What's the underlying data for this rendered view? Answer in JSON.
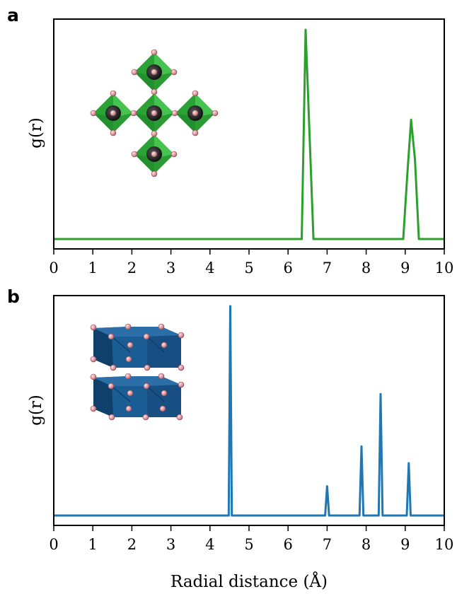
{
  "colors": {
    "panel_a": "#2ca02c",
    "panel_b": "#1f77b4",
    "octahedron_green": "#2fb43a",
    "octahedron_blue": "#1a5d95",
    "atom_pink": "#e6a0a8",
    "atom_dark": "#333333"
  },
  "icons": {
    "panel_a_inset": "corner-sharing-octahedra-cross",
    "panel_b_inset": "edge-sharing-octahedra-layers"
  },
  "chart_data": [
    {
      "type": "line",
      "panel_label": "a",
      "ylabel": "g(r)",
      "xlabel": "",
      "xlim": [
        0,
        10
      ],
      "x_ticks": [
        "0",
        "1",
        "2",
        "3",
        "4",
        "5",
        "6",
        "7",
        "8",
        "9",
        "10"
      ],
      "y_ticks_shown": false,
      "grid": false,
      "series": [
        {
          "color": "#2ca02c",
          "x": [
            0,
            6.35,
            6.45,
            6.65,
            8.95,
            9.05,
            9.15,
            9.25,
            9.35,
            10
          ],
          "y": [
            0,
            0,
            1.0,
            0,
            0,
            0.3,
            0.57,
            0.38,
            0,
            0
          ]
        }
      ]
    },
    {
      "type": "line",
      "panel_label": "b",
      "ylabel": "g(r)",
      "xlabel": "Radial distance (Å)",
      "xlim": [
        0,
        10
      ],
      "x_ticks": [
        "0",
        "1",
        "2",
        "3",
        "4",
        "5",
        "6",
        "7",
        "8",
        "9",
        "10"
      ],
      "y_ticks_shown": false,
      "grid": false,
      "series": [
        {
          "color": "#1f77b4",
          "x": [
            0,
            4.48,
            4.52,
            4.56,
            6.95,
            7.0,
            7.05,
            7.83,
            7.88,
            7.93,
            8.32,
            8.37,
            8.42,
            9.04,
            9.09,
            9.14,
            10
          ],
          "y": [
            0,
            0,
            1.0,
            0,
            0,
            0.14,
            0,
            0,
            0.33,
            0,
            0,
            0.58,
            0,
            0,
            0.25,
            0,
            0
          ]
        }
      ]
    }
  ]
}
